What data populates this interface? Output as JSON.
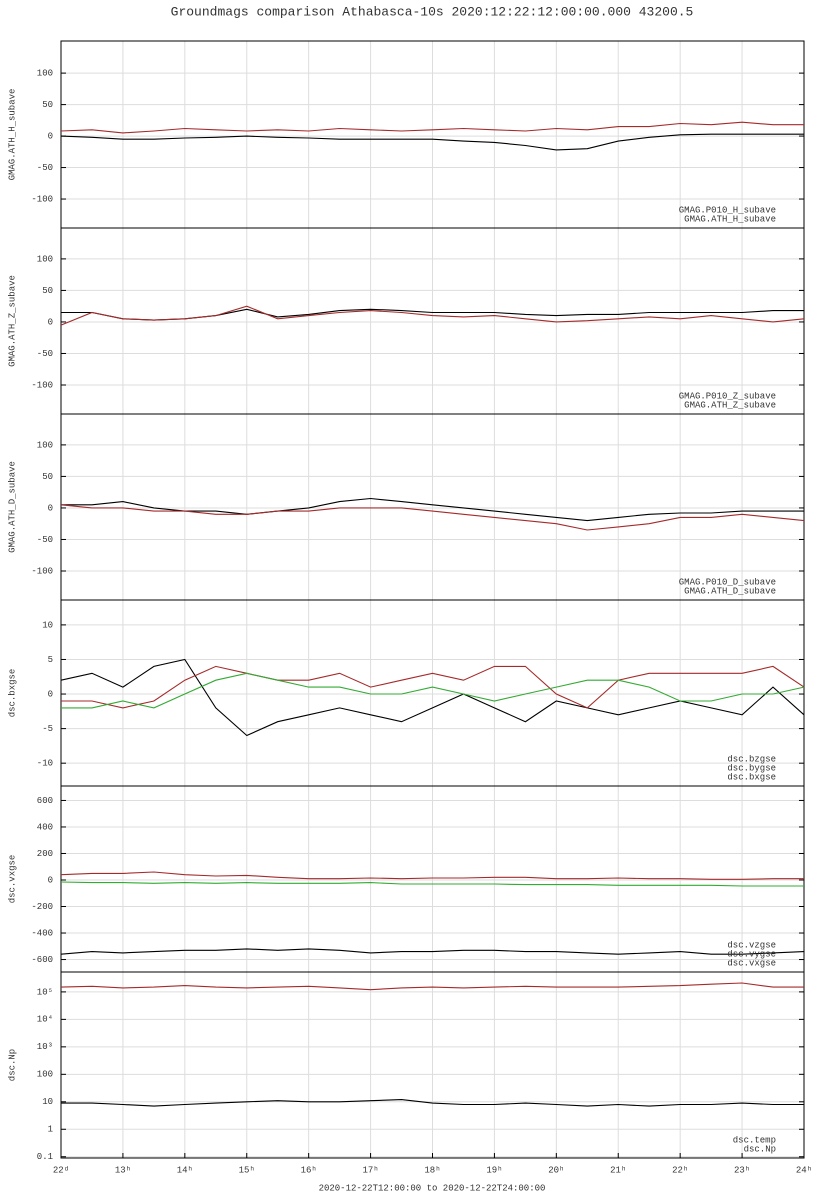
{
  "title": "Groundmags comparison Athabasca-10s 2020:12:22:12:00:00.000 43200.5",
  "xlabel": "2020-12-22T12:00:00 to 2020-12-22T24:00:00",
  "chart_data": [
    {
      "type": "line",
      "ylabel": "GMAG.ATH_H_subave",
      "legend": "lower right",
      "grid": true,
      "x": [
        12,
        12.5,
        13,
        13.5,
        14,
        14.5,
        15,
        15.5,
        16,
        16.5,
        17,
        17.5,
        18,
        18.5,
        19,
        19.5,
        20,
        20.5,
        21,
        21.5,
        22,
        22.5,
        23,
        23.5,
        24
      ],
      "xlim": [
        12,
        24
      ],
      "ylim": [
        -146,
        151
      ],
      "yticks": [
        -100,
        -50,
        0,
        50,
        100
      ],
      "series": [
        {
          "name": "GMAG.P010_H_subave",
          "color": "#a52a2a",
          "values": [
            8,
            10,
            5,
            8,
            12,
            10,
            8,
            10,
            8,
            12,
            10,
            8,
            10,
            12,
            10,
            8,
            12,
            10,
            15,
            15,
            20,
            18,
            22,
            18,
            18
          ]
        },
        {
          "name": "GMAG.ATH_H_subave",
          "color": "#000000",
          "values": [
            0,
            -2,
            -5,
            -5,
            -3,
            -2,
            0,
            -2,
            -3,
            -5,
            -5,
            -5,
            -5,
            -8,
            -10,
            -15,
            -22,
            -20,
            -8,
            -2,
            2,
            3,
            3,
            3,
            3
          ]
        }
      ]
    },
    {
      "type": "line",
      "ylabel": "GMAG.ATH_Z_subave",
      "legend": "lower right",
      "grid": true,
      "x": [
        12,
        12.5,
        13,
        13.5,
        14,
        14.5,
        15,
        15.5,
        16,
        16.5,
        17,
        17.5,
        18,
        18.5,
        19,
        19.5,
        20,
        20.5,
        21,
        21.5,
        22,
        22.5,
        23,
        23.5,
        24
      ],
      "xlim": [
        12,
        24
      ],
      "ylim": [
        -146,
        149
      ],
      "yticks": [
        -100,
        -50,
        0,
        50,
        100
      ],
      "series": [
        {
          "name": "GMAG.P010_Z_subave",
          "color": "#a52a2a",
          "values": [
            -5,
            15,
            5,
            3,
            5,
            10,
            25,
            5,
            10,
            15,
            18,
            15,
            10,
            8,
            10,
            5,
            0,
            2,
            5,
            8,
            5,
            10,
            5,
            0,
            5
          ]
        },
        {
          "name": "GMAG.ATH_Z_subave",
          "color": "#000000",
          "values": [
            15,
            15,
            5,
            3,
            5,
            10,
            20,
            8,
            12,
            18,
            20,
            18,
            15,
            15,
            15,
            12,
            10,
            12,
            12,
            15,
            15,
            15,
            15,
            18,
            18
          ]
        }
      ]
    },
    {
      "type": "line",
      "ylabel": "GMAG.ATH_D_subave",
      "legend": "lower right",
      "grid": true,
      "x": [
        12,
        12.5,
        13,
        13.5,
        14,
        14.5,
        15,
        15.5,
        16,
        16.5,
        17,
        17.5,
        18,
        18.5,
        19,
        19.5,
        20,
        20.5,
        21,
        21.5,
        22,
        22.5,
        23,
        23.5,
        24
      ],
      "xlim": [
        12,
        24
      ],
      "ylim": [
        -146,
        149
      ],
      "yticks": [
        -100,
        -50,
        0,
        50,
        100
      ],
      "series": [
        {
          "name": "GMAG.P010_D_subave",
          "color": "#a52a2a",
          "values": [
            5,
            0,
            0,
            -5,
            -5,
            -10,
            -10,
            -5,
            -5,
            0,
            0,
            0,
            -5,
            -10,
            -15,
            -20,
            -25,
            -35,
            -30,
            -25,
            -15,
            -15,
            -10,
            -15,
            -20
          ]
        },
        {
          "name": "GMAG.ATH_D_subave",
          "color": "#000000",
          "values": [
            5,
            5,
            10,
            0,
            -5,
            -5,
            -10,
            -5,
            0,
            10,
            15,
            10,
            5,
            0,
            -5,
            -10,
            -15,
            -20,
            -15,
            -10,
            -8,
            -8,
            -5,
            -5,
            -5
          ]
        }
      ]
    },
    {
      "type": "line",
      "ylabel": "dsc.bxgse",
      "legend": "lower right",
      "grid": true,
      "x": [
        12,
        12.5,
        13,
        13.5,
        14,
        14.5,
        15,
        15.5,
        16,
        16.5,
        17,
        17.5,
        18,
        18.5,
        19,
        19.5,
        20,
        20.5,
        21,
        21.5,
        22,
        22.5,
        23,
        23.5,
        24
      ],
      "xlim": [
        12,
        24
      ],
      "ylim": [
        -13.3,
        13.6
      ],
      "yticks": [
        -10,
        -5,
        0,
        5,
        10
      ],
      "series": [
        {
          "name": "dsc.bzgse",
          "color": "#33aa33",
          "values": [
            -2,
            -2,
            -1,
            -2,
            0,
            2,
            3,
            2,
            1,
            1,
            0,
            0,
            1,
            0,
            -1,
            0,
            1,
            2,
            2,
            1,
            -1,
            -1,
            0,
            0,
            1
          ]
        },
        {
          "name": "dsc.bygse",
          "color": "#a52a2a",
          "values": [
            -1,
            -1,
            -2,
            -1,
            2,
            4,
            3,
            2,
            2,
            3,
            1,
            2,
            3,
            2,
            4,
            4,
            0,
            -2,
            2,
            3,
            3,
            3,
            3,
            4,
            1
          ]
        },
        {
          "name": "dsc.bxgse",
          "color": "#000000",
          "values": [
            2,
            3,
            1,
            4,
            5,
            -2,
            -6,
            -4,
            -3,
            -2,
            -3,
            -4,
            -2,
            0,
            -2,
            -4,
            -1,
            -2,
            -3,
            -2,
            -1,
            -2,
            -3,
            1,
            -3
          ]
        }
      ]
    },
    {
      "type": "line",
      "ylabel": "dsc.vxgse",
      "legend": "lower right",
      "grid": true,
      "x": [
        12,
        12.5,
        13,
        13.5,
        14,
        14.5,
        15,
        15.5,
        16,
        16.5,
        17,
        17.5,
        18,
        18.5,
        19,
        19.5,
        20,
        20.5,
        21,
        21.5,
        22,
        22.5,
        23,
        23.5,
        24
      ],
      "xlim": [
        12,
        24
      ],
      "ylim": [
        -694,
        709
      ],
      "yticks": [
        -600,
        -400,
        -200,
        0,
        200,
        400,
        600
      ],
      "series": [
        {
          "name": "dsc.vzgse",
          "color": "#33aa33",
          "values": [
            -15,
            -20,
            -20,
            -25,
            -20,
            -25,
            -20,
            -25,
            -25,
            -25,
            -20,
            -30,
            -30,
            -30,
            -30,
            -35,
            -35,
            -35,
            -40,
            -40,
            -40,
            -40,
            -45,
            -45,
            -45
          ]
        },
        {
          "name": "dsc.vygse",
          "color": "#a52a2a",
          "values": [
            40,
            50,
            50,
            60,
            40,
            30,
            35,
            20,
            10,
            10,
            15,
            10,
            15,
            15,
            20,
            20,
            10,
            10,
            15,
            10,
            10,
            5,
            5,
            10,
            10
          ]
        },
        {
          "name": "dsc.vxgse",
          "color": "#000000",
          "values": [
            -560,
            -540,
            -550,
            -540,
            -530,
            -530,
            -520,
            -530,
            -520,
            -530,
            -550,
            -540,
            -540,
            -530,
            -530,
            -540,
            -540,
            -550,
            -560,
            -550,
            -540,
            -560,
            -560,
            -550,
            -540
          ]
        }
      ]
    },
    {
      "type": "line",
      "ylabel": "dsc.Np",
      "legend": "lower right",
      "grid": true,
      "ylog": true,
      "x": [
        12,
        12.5,
        13,
        13.5,
        14,
        14.5,
        15,
        15.5,
        16,
        16.5,
        17,
        17.5,
        18,
        18.5,
        19,
        19.5,
        20,
        20.5,
        21,
        21.5,
        22,
        22.5,
        23,
        23.5,
        24
      ],
      "xlim": [
        12,
        24
      ],
      "ylim": [
        0.09,
        530000
      ],
      "yticks": [
        0.1,
        1,
        10,
        100,
        {
          "value": 1000,
          "label": "10³"
        },
        {
          "value": 10000,
          "label": "10⁴"
        },
        {
          "value": 100000,
          "label": "10⁵"
        }
      ],
      "xticks": [
        {
          "value": 12,
          "label": "22ᵈ"
        },
        {
          "value": 13,
          "label": "13ʰ"
        },
        {
          "value": 14,
          "label": "14ʰ"
        },
        {
          "value": 15,
          "label": "15ʰ"
        },
        {
          "value": 16,
          "label": "16ʰ"
        },
        {
          "value": 17,
          "label": "17ʰ"
        },
        {
          "value": 18,
          "label": "18ʰ"
        },
        {
          "value": 19,
          "label": "19ʰ"
        },
        {
          "value": 20,
          "label": "20ʰ"
        },
        {
          "value": 21,
          "label": "21ʰ"
        },
        {
          "value": 22,
          "label": "22ʰ"
        },
        {
          "value": 23,
          "label": "23ʰ"
        },
        {
          "value": 24,
          "label": "24ʰ"
        }
      ],
      "series": [
        {
          "name": "dsc.temp",
          "color": "#a52a2a",
          "values": [
            150000,
            160000,
            140000,
            150000,
            170000,
            150000,
            140000,
            150000,
            160000,
            140000,
            120000,
            140000,
            150000,
            140000,
            150000,
            160000,
            150000,
            150000,
            150000,
            160000,
            170000,
            190000,
            210000,
            150000,
            150000
          ]
        },
        {
          "name": "dsc.Np",
          "color": "#000000",
          "values": [
            9,
            9,
            8,
            7,
            8,
            9,
            10,
            11,
            10,
            10,
            11,
            12,
            9,
            8,
            8,
            9,
            8,
            7,
            8,
            7,
            8,
            8,
            9,
            8,
            8
          ]
        }
      ]
    }
  ]
}
